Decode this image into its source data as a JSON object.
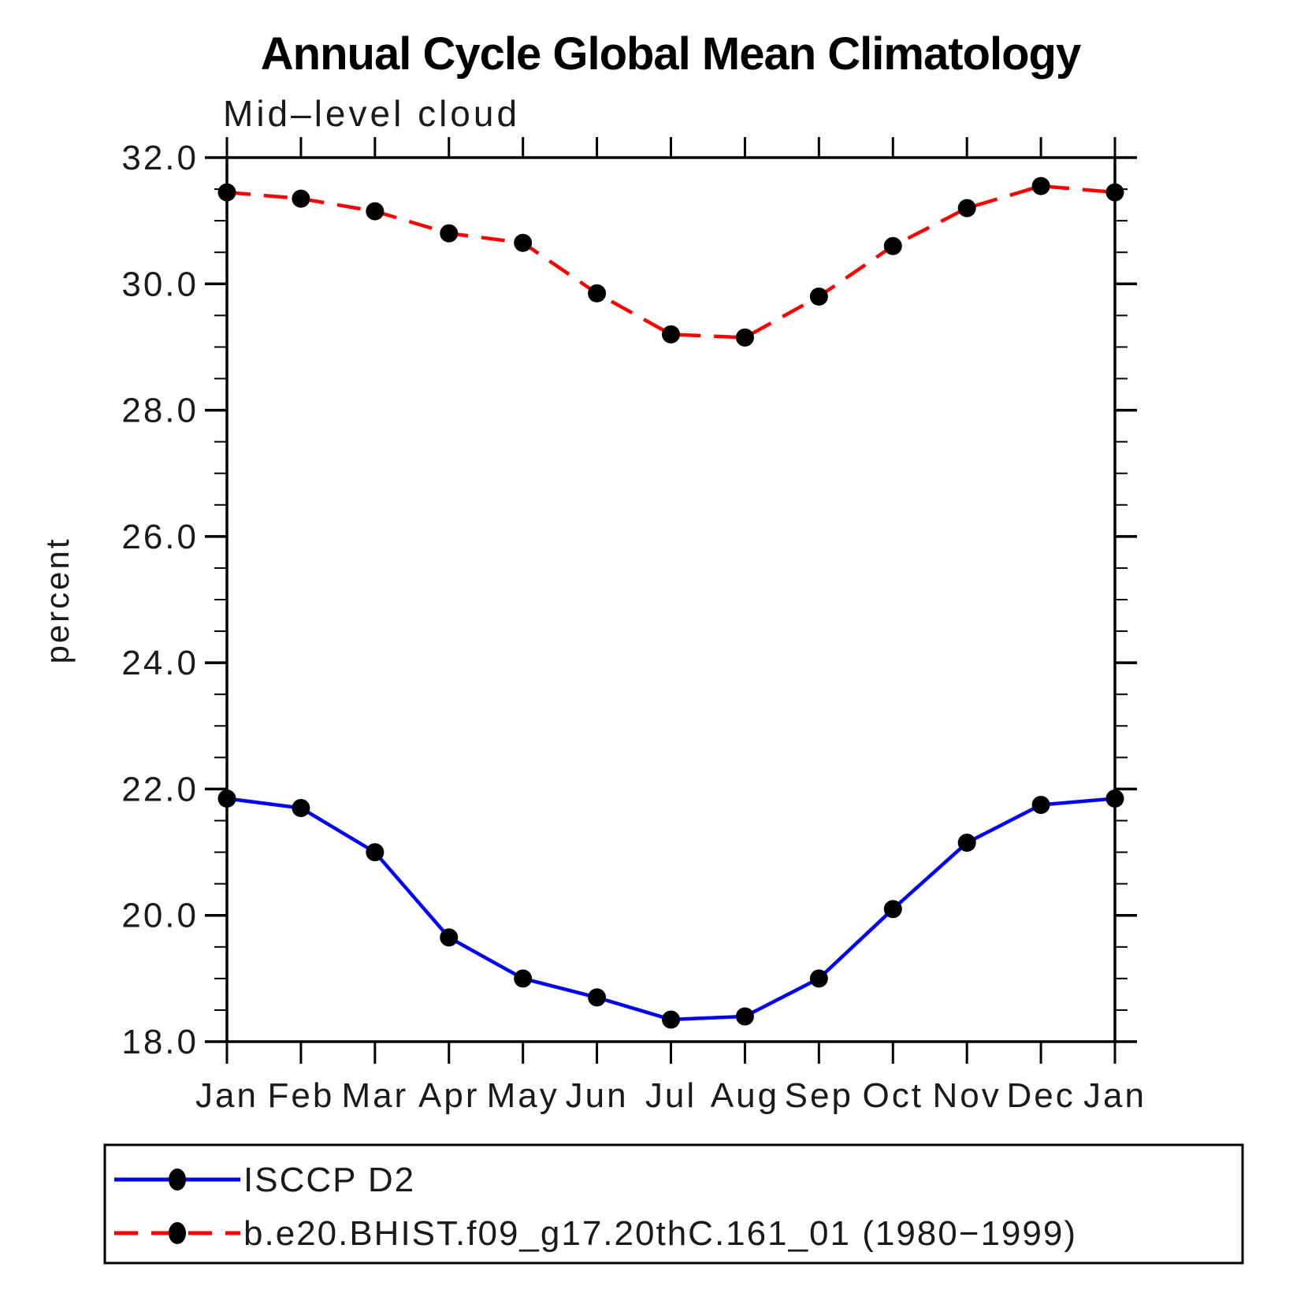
{
  "title": "Annual Cycle Global Mean Climatology",
  "subtitle": "Mid–level cloud",
  "ylabel": "percent",
  "legend": {
    "entries": [
      {
        "label": "ISCCP D2",
        "color": "#0000ff",
        "dash": "solid"
      },
      {
        "label": "b.e20.BHIST.f09_g17.20thC.161_01 (1980−1999)",
        "color": "#ff0000",
        "dash": "dashed"
      }
    ]
  },
  "chart_data": {
    "type": "line",
    "title": "Annual Cycle Global Mean Climatology",
    "subtitle": "Mid–level cloud",
    "xlabel": "",
    "ylabel": "percent",
    "categories": [
      "Jan",
      "Feb",
      "Mar",
      "Apr",
      "May",
      "Jun",
      "Jul",
      "Aug",
      "Sep",
      "Oct",
      "Nov",
      "Dec",
      "Jan"
    ],
    "series": [
      {
        "name": "ISCCP D2",
        "color": "#0000ff",
        "dash": "solid",
        "marker": "black-circle",
        "values": [
          21.85,
          21.7,
          21.0,
          19.65,
          19.0,
          18.7,
          18.35,
          18.4,
          19.0,
          20.1,
          21.15,
          21.75,
          21.85
        ]
      },
      {
        "name": "b.e20.BHIST.f09_g17.20thC.161_01 (1980−1999)",
        "color": "#ff0000",
        "dash": "dashed",
        "marker": "black-circle",
        "values": [
          31.45,
          31.35,
          31.15,
          30.8,
          30.65,
          29.85,
          29.2,
          29.15,
          29.8,
          30.6,
          31.2,
          31.55,
          31.45
        ]
      }
    ],
    "ylim": [
      18.0,
      32.0
    ],
    "ytick_major": 2.0,
    "ytick_minor": 0.5,
    "ytick_labels": [
      "32.0",
      "30.0",
      "28.0",
      "26.0",
      "24.0",
      "22.0",
      "20.0",
      "18.0"
    ],
    "marker_color": "#000000",
    "axis_color": "#000000",
    "grid": false,
    "legend_position": "bottom"
  }
}
